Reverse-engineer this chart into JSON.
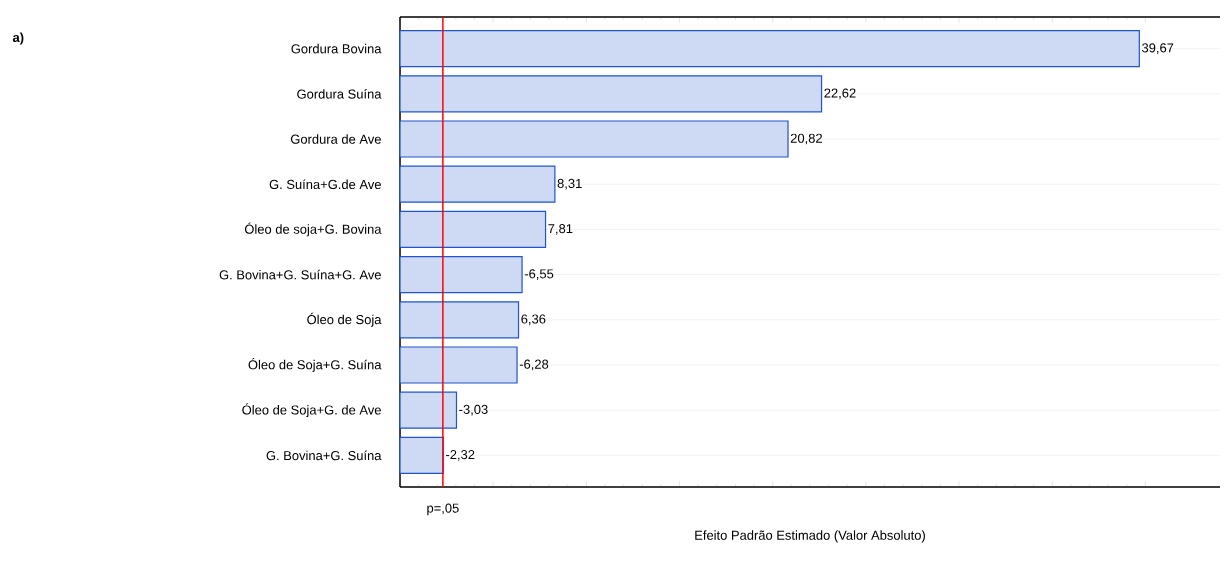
{
  "chart_data": {
    "type": "bar",
    "orientation": "horizontal",
    "xlabel": "Efeito Padrão Estimado (Valor Absoluto)",
    "categories": [
      "Gordura Bovina",
      "Gordura Suína",
      "Gordura de Ave",
      "G. Suína+G.de Ave",
      "Óleo de soja+G. Bovina",
      "G. Bovina+G. Suína+G. Ave",
      "Óleo de Soja",
      "Óleo de Soja+G. Suína",
      "Óleo de Soja+G. de Ave",
      "G. Bovina+G. Suína"
    ],
    "values": [
      39.67,
      22.62,
      20.82,
      8.31,
      7.81,
      6.55,
      6.36,
      6.28,
      3.03,
      2.32
    ],
    "value_labels": [
      "39,67",
      "22,62",
      "20,82",
      "8,31",
      "7,81",
      null,
      "6,36",
      null,
      null,
      null
    ],
    "color": "#1f55c8",
    "xlim": [
      0,
      44
    ],
    "xticks": [
      {
        "value": 0,
        "label": null
      },
      {
        "value": 5,
        "label": null
      },
      {
        "value": 10,
        "label": null
      },
      {
        "value": 15,
        "label": null
      },
      {
        "value": 20,
        "label": null
      },
      {
        "value": 25,
        "label": null
      },
      {
        "value": 30,
        "label": null
      },
      {
        "value": 35,
        "label": null
      },
      {
        "value": 40,
        "label": null
      }
    ],
    "ref_lines": [
      {
        "axis": "x",
        "value": 2.3,
        "label": "p=,05",
        "color": "#ff0000"
      }
    ],
    "grid": "y",
    "tick_labels": "y",
    "annotations": [
      "a)",
      {
        "text": "-6,55",
        "x": 6.55,
        "y": "G. Bovina+G. Suína+G. Ave"
      },
      {
        "text": "-6,28",
        "x": 6.28,
        "y": "Óleo de Soja+G. Suína"
      },
      {
        "text": "-3,03",
        "x": 3.03,
        "y": "Óleo de Soja+G. de Ave"
      },
      {
        "text": "-2,32",
        "x": 2.32,
        "y": "G. Bovina+G. Suína"
      }
    ]
  }
}
